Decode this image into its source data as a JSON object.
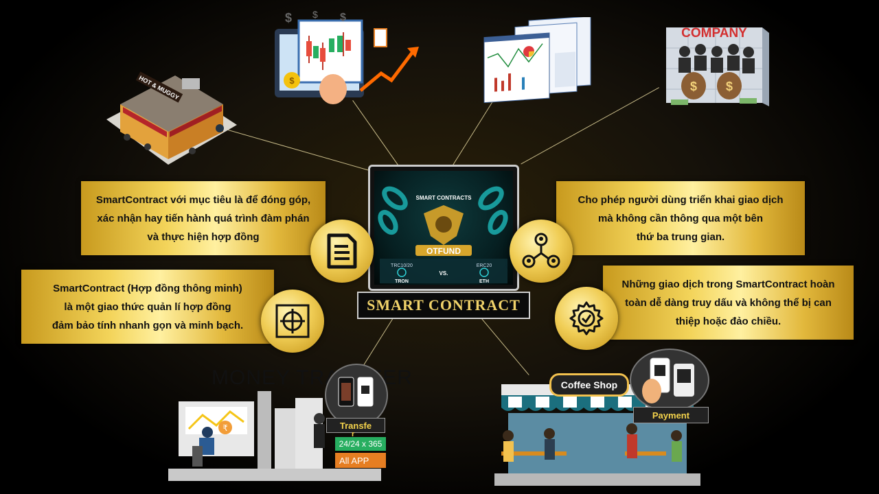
{
  "center": {
    "title": "SMART CONTRACT",
    "screen_title": "SMART CONTRACTS",
    "brand": "OTFUND",
    "left_token_std": "TRC10/20",
    "right_token_std": "ERC20",
    "left_token": "TRON",
    "versus": "VS.",
    "right_token": "ETH"
  },
  "boxes": {
    "top_left": [
      "SmartContract với mục tiêu là để đóng góp,",
      "xác nhận hay tiến hành quá trình đàm phán",
      "và thực hiện hợp đồng"
    ],
    "mid_left": [
      "SmartContract (Hợp đồng thông minh)",
      "là một giao thức quản lí hợp đồng",
      "đảm bảo tính nhanh gọn và minh bạch."
    ],
    "top_right": [
      "Cho phép người dùng triển khai giao dịch",
      "mà không cần thông qua một bên",
      "thứ ba trung gian."
    ],
    "mid_right": [
      "Những giao dịch trong SmartContract hoàn",
      "toàn dễ dàng truy dấu và không thể bị can",
      "thiệp hoặc đảo chiều."
    ]
  },
  "illustrations": {
    "shop_sign": "HOT & MUGGY",
    "company_sign": "COMPANY",
    "money_transfer_title": "MONEY TRANSFER",
    "transfer_label": "Transfe",
    "transfer_label_tail": "r",
    "transfer_hours": "24/24  x 365",
    "transfer_app": "All APP",
    "coffee_shop_sign": "Coffee Shop",
    "payment_label": "Payment"
  },
  "icons": {
    "document": "document-icon",
    "target": "target-icon",
    "network": "network-users-icon",
    "gear": "gear-check-icon"
  },
  "colors": {
    "gold": "#f0cd55",
    "background": "#000000"
  }
}
